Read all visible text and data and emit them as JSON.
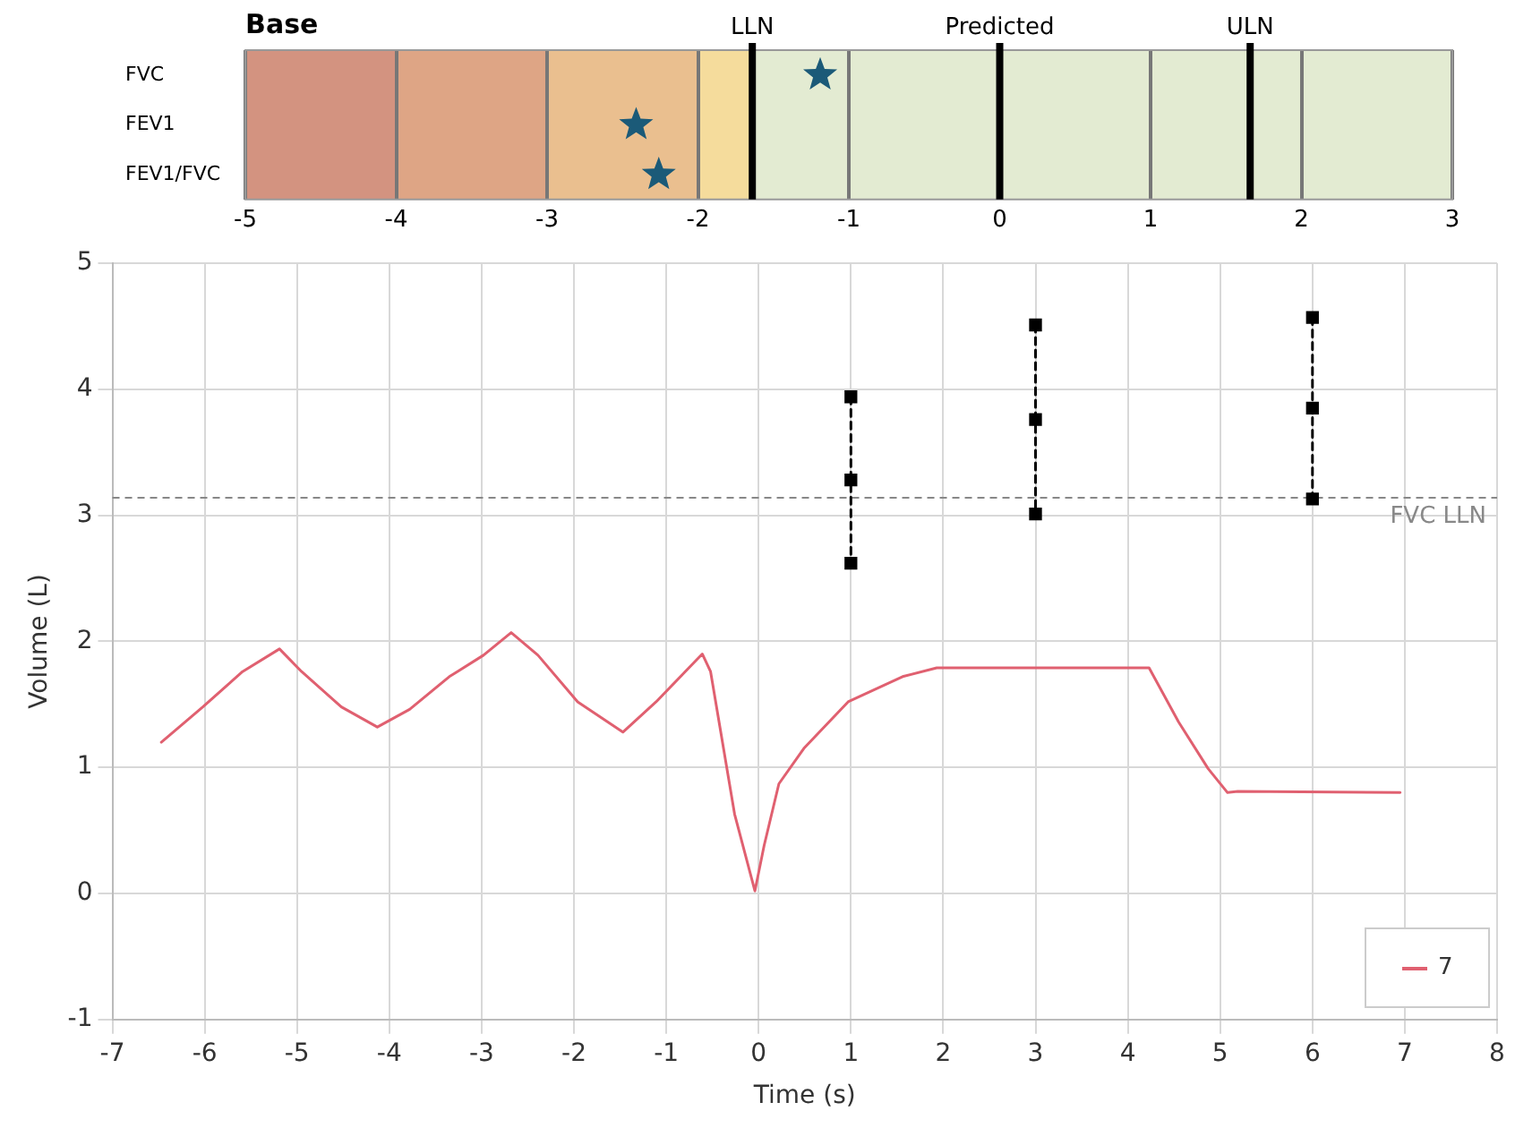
{
  "chart_data": [
    {
      "type": "scatter",
      "title": "Base",
      "orientation": "horizontal",
      "categories": [
        "FVC",
        "FEV1",
        "FEV1/FVC"
      ],
      "values": [
        -1.19,
        -2.41,
        -2.26
      ],
      "color": "#1b5a78",
      "marker": "star",
      "xlim": [
        -5,
        3
      ],
      "xticks": [
        -5,
        -4,
        -3,
        -2,
        -1,
        0,
        1,
        2,
        3
      ],
      "grid": "x",
      "ref_lines": [
        {
          "axis": "x",
          "value": -1.64,
          "label": "LLN",
          "color": "#000000"
        },
        {
          "axis": "x",
          "value": 0,
          "label": "Predicted",
          "color": "#000000"
        },
        {
          "axis": "x",
          "value": 1.66,
          "label": "ULN",
          "color": "#000000"
        }
      ],
      "bands": [
        {
          "axis": "x",
          "from": -5,
          "to": -4,
          "color": "#d39380"
        },
        {
          "axis": "x",
          "from": -4,
          "to": -3,
          "color": "#dea585"
        },
        {
          "axis": "x",
          "from": -3,
          "to": -2,
          "color": "#eabf8f"
        },
        {
          "axis": "x",
          "from": -2,
          "to": -1.64,
          "color": "#f5dc9c"
        },
        {
          "axis": "x",
          "from": -1.64,
          "to": 3,
          "color": "#e3ebd2"
        }
      ]
    },
    {
      "type": "line",
      "xlabel": "Time (s)",
      "ylabel": "Volume (L)",
      "xlim": [
        -7,
        8
      ],
      "xticks": [
        -7,
        -6,
        -5,
        -4,
        -3,
        -2,
        -1,
        0,
        1,
        2,
        3,
        4,
        5,
        6,
        7,
        8
      ],
      "ylim": [
        -1,
        5
      ],
      "yticks": [
        -1,
        0,
        1,
        2,
        3,
        4,
        5
      ],
      "grid": true,
      "legend": "bottom right",
      "ref_lines": [
        {
          "axis": "y",
          "value": 3.14,
          "label": "FVC LLN",
          "color": "#888888",
          "line_style": "dashed"
        }
      ],
      "series": [
        {
          "name": "7",
          "color": "#e06070",
          "marker": "none",
          "line_style": "solid",
          "x": [
            -6.47,
            -6.02,
            -5.59,
            -5.19,
            -4.95,
            -4.52,
            -4.13,
            -3.78,
            -3.35,
            -2.98,
            -2.68,
            -2.39,
            -1.96,
            -1.47,
            -1.11,
            -0.61,
            -0.52,
            -0.26,
            -0.04,
            0.06,
            0.22,
            0.49,
            0.97,
            1.56,
            1.93,
            4.23,
            4.55,
            4.87,
            5.08,
            5.19,
            6.95
          ],
          "values": [
            1.2,
            1.48,
            1.76,
            1.94,
            1.76,
            1.48,
            1.32,
            1.46,
            1.72,
            1.89,
            2.07,
            1.89,
            1.52,
            1.28,
            1.52,
            1.9,
            1.76,
            0.63,
            0.02,
            0.38,
            0.87,
            1.15,
            1.52,
            1.72,
            1.79,
            1.79,
            1.36,
            0.99,
            0.8,
            0.81,
            0.8
          ]
        },
        {
          "color": "#000000",
          "marker": "square",
          "line_style": "dashed",
          "x": [
            1,
            1,
            1
          ],
          "values": [
            3.94,
            3.28,
            2.62
          ]
        },
        {
          "color": "#000000",
          "marker": "square",
          "line_style": "dashed",
          "x": [
            3,
            3,
            3
          ],
          "values": [
            4.51,
            3.76,
            3.01
          ]
        },
        {
          "color": "#000000",
          "marker": "square",
          "line_style": "dashed",
          "x": [
            6,
            6,
            6
          ],
          "values": [
            4.57,
            3.85,
            3.13
          ]
        }
      ]
    }
  ]
}
